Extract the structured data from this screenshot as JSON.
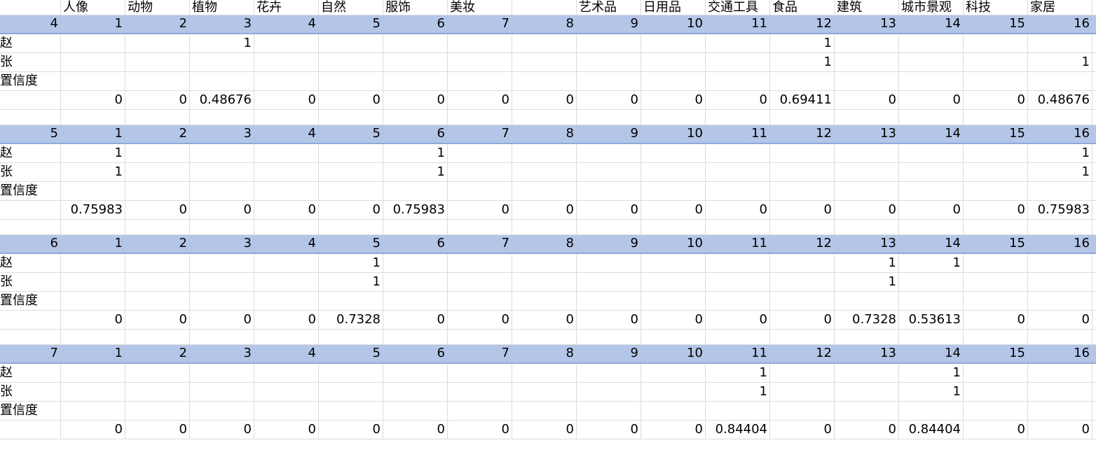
{
  "header": [
    "人像",
    "动物",
    "植物",
    "花卉",
    "自然",
    "服饰",
    "美妆",
    "",
    "艺术品",
    "日用品",
    "交通工具",
    "食品",
    "建筑",
    "城市景观",
    "科技",
    "家居"
  ],
  "row_labels": {
    "zhao": "赵",
    "zhang": "张",
    "confidence": "置信度"
  },
  "blocks": [
    {
      "index": "4",
      "columns": [
        "1",
        "2",
        "3",
        "4",
        "5",
        "6",
        "7",
        "8",
        "9",
        "10",
        "11",
        "12",
        "13",
        "14",
        "15",
        "16"
      ],
      "zhao": [
        "",
        "",
        "1",
        "",
        "",
        "",
        "",
        "",
        "",
        "",
        "",
        "1",
        "",
        "",
        "",
        ""
      ],
      "zhang": [
        "",
        "",
        "",
        "",
        "",
        "",
        "",
        "",
        "",
        "",
        "",
        "1",
        "",
        "",
        "",
        "1"
      ],
      "confidence": [
        "0",
        "0",
        "0.48676",
        "0",
        "0",
        "0",
        "0",
        "0",
        "0",
        "0",
        "0",
        "0.69411",
        "0",
        "0",
        "0",
        "0.48676"
      ]
    },
    {
      "index": "5",
      "columns": [
        "1",
        "2",
        "3",
        "4",
        "5",
        "6",
        "7",
        "8",
        "9",
        "10",
        "11",
        "12",
        "13",
        "14",
        "15",
        "16"
      ],
      "zhao": [
        "1",
        "",
        "",
        "",
        "",
        "1",
        "",
        "",
        "",
        "",
        "",
        "",
        "",
        "",
        "",
        "1"
      ],
      "zhang": [
        "1",
        "",
        "",
        "",
        "",
        "1",
        "",
        "",
        "",
        "",
        "",
        "",
        "",
        "",
        "",
        "1"
      ],
      "confidence": [
        "0.75983",
        "0",
        "0",
        "0",
        "0",
        "0.75983",
        "0",
        "0",
        "0",
        "0",
        "0",
        "0",
        "0",
        "0",
        "0",
        "0.75983"
      ]
    },
    {
      "index": "6",
      "columns": [
        "1",
        "2",
        "3",
        "4",
        "5",
        "6",
        "7",
        "8",
        "9",
        "10",
        "11",
        "12",
        "13",
        "14",
        "15",
        "16"
      ],
      "zhao": [
        "",
        "",
        "",
        "",
        "1",
        "",
        "",
        "",
        "",
        "",
        "",
        "",
        "1",
        "1",
        "",
        ""
      ],
      "zhang": [
        "",
        "",
        "",
        "",
        "1",
        "",
        "",
        "",
        "",
        "",
        "",
        "",
        "1",
        "",
        "",
        ""
      ],
      "confidence": [
        "0",
        "0",
        "0",
        "0",
        "0.7328",
        "0",
        "0",
        "0",
        "0",
        "0",
        "0",
        "0",
        "0.7328",
        "0.53613",
        "0",
        "0"
      ]
    },
    {
      "index": "7",
      "columns": [
        "1",
        "2",
        "3",
        "4",
        "5",
        "6",
        "7",
        "8",
        "9",
        "10",
        "11",
        "12",
        "13",
        "14",
        "15",
        "16"
      ],
      "zhao": [
        "",
        "",
        "",
        "",
        "",
        "",
        "",
        "",
        "",
        "",
        "1",
        "",
        "",
        "1",
        "",
        ""
      ],
      "zhang": [
        "",
        "",
        "",
        "",
        "",
        "",
        "",
        "",
        "",
        "",
        "1",
        "",
        "",
        "1",
        "",
        ""
      ],
      "confidence": [
        "0",
        "0",
        "0",
        "0",
        "0",
        "0",
        "0",
        "0",
        "0",
        "0",
        "0.84404",
        "0",
        "0",
        "0.84404",
        "0",
        "0"
      ]
    }
  ]
}
